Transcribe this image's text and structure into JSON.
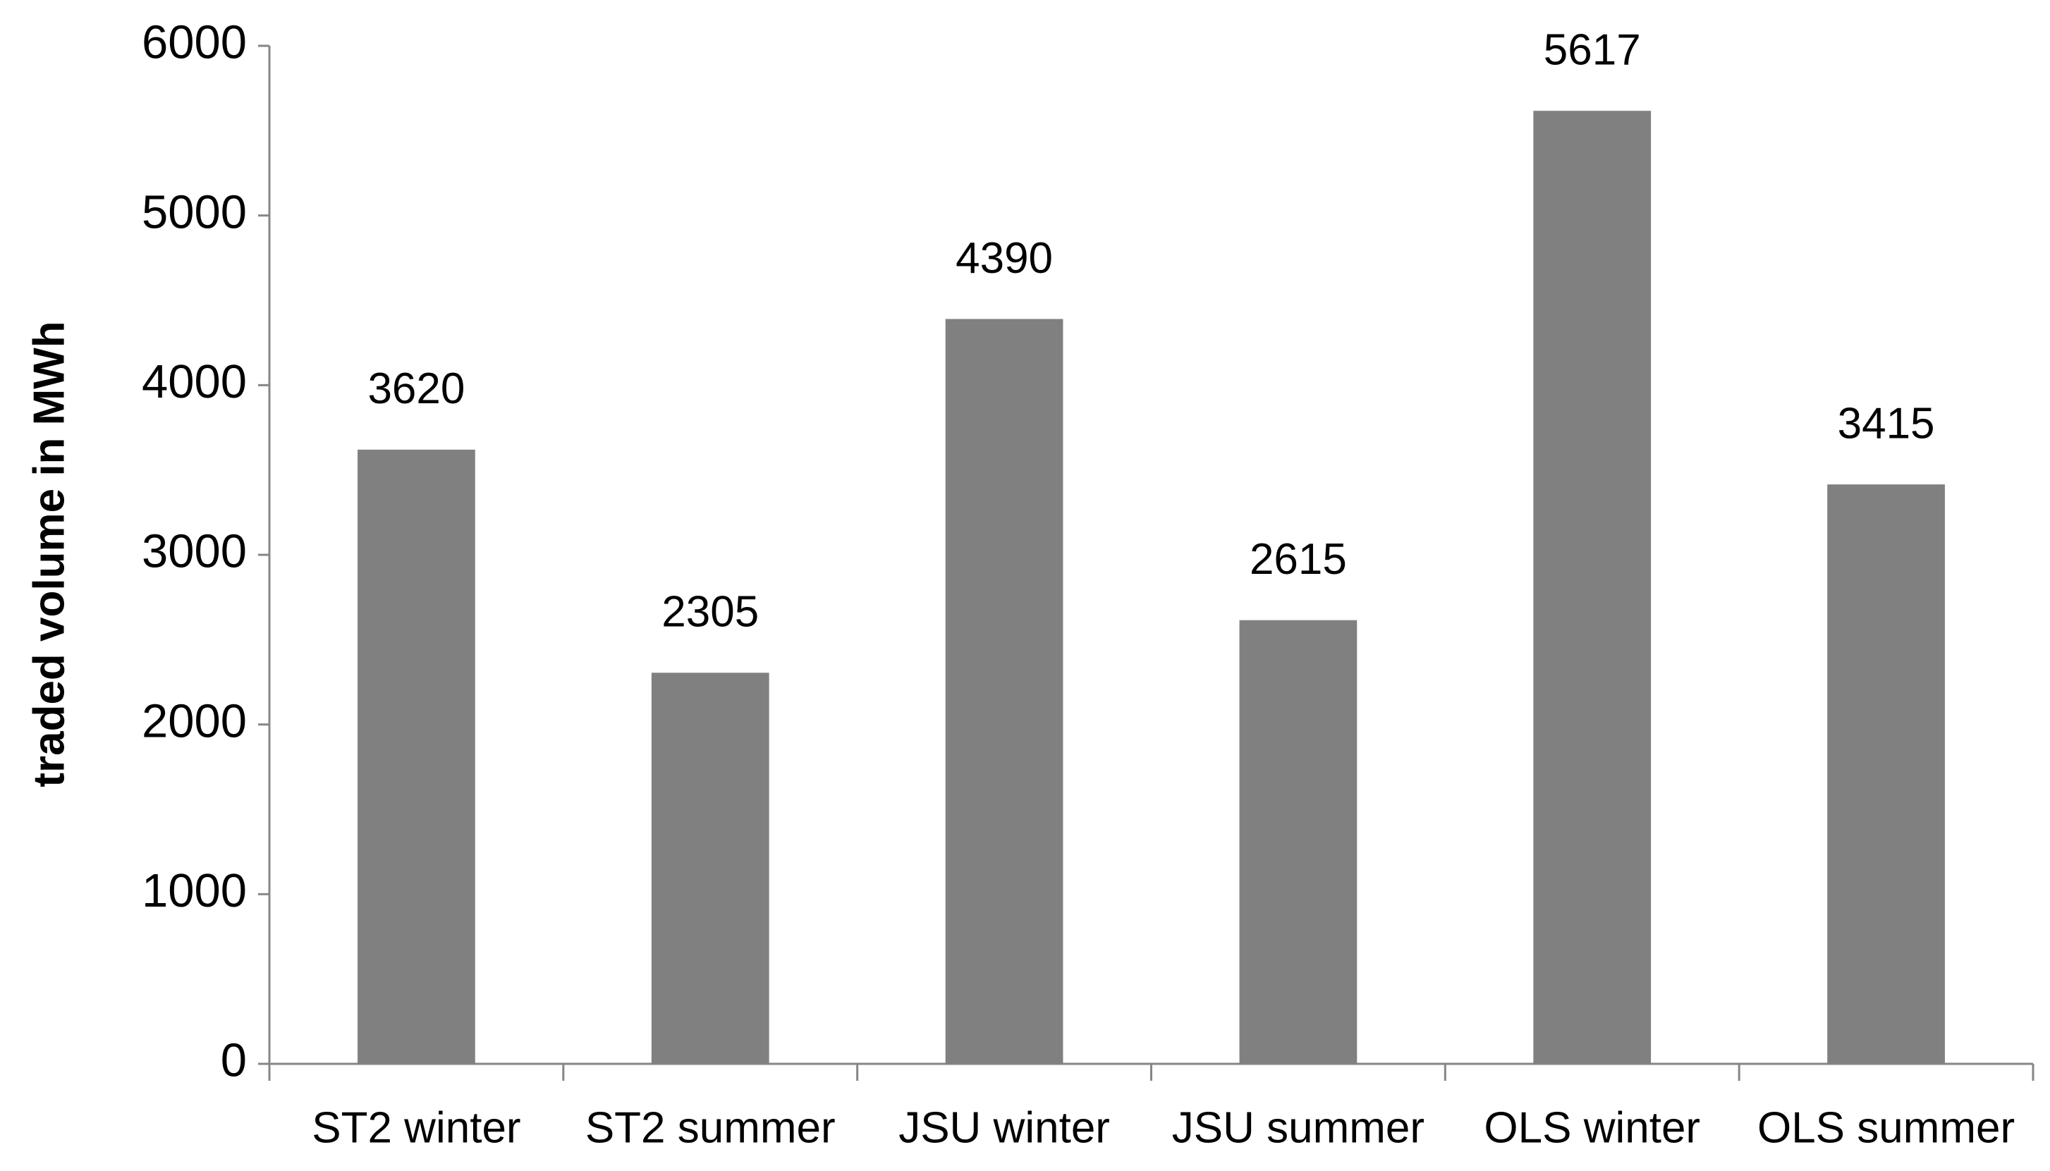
{
  "chart_data": {
    "type": "bar",
    "y_label": "traded volume in MWh",
    "categories": [
      "ST2 winter",
      "ST2 summer",
      "JSU winter",
      "JSU summer",
      "OLS winter",
      "OLS summer"
    ],
    "values": [
      3620,
      2305,
      4390,
      2615,
      5617,
      3415
    ],
    "color": "#808080",
    "ylim": [
      0,
      6000
    ],
    "yticks": [
      0,
      1000,
      2000,
      3000,
      4000,
      5000,
      6000
    ],
    "grid": false
  }
}
